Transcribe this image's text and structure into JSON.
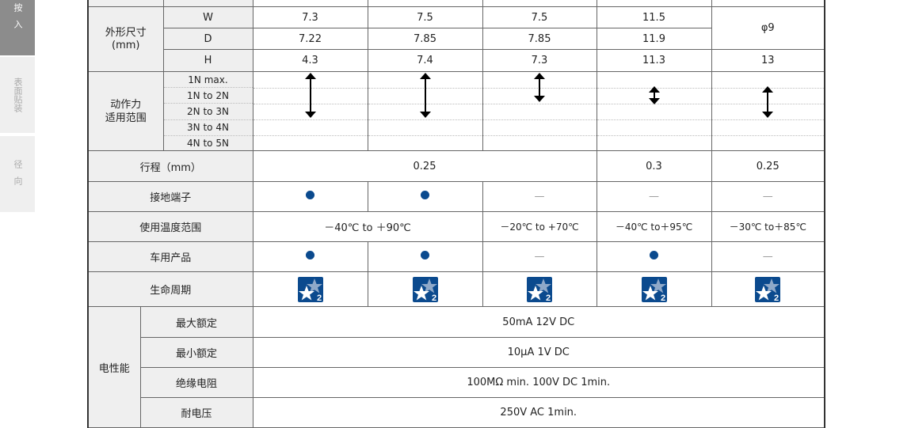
{
  "sidebar": {
    "tabs": [
      {
        "label": "按入",
        "active": true
      },
      {
        "label": "表面贴装"
      },
      {
        "label": "径向"
      }
    ]
  },
  "colors": {
    "dot": "#0b4a8e",
    "lifecycle_bg": "#0b4a8e",
    "label_bg": "#efefef"
  },
  "dimensions": {
    "label": "外形尺寸\n(mm)",
    "rows": [
      {
        "label": "W",
        "values": [
          "7.3",
          "7.5",
          "7.5",
          "11.5"
        ]
      },
      {
        "label": "D",
        "values": [
          "7.22",
          "7.85",
          "7.85",
          "11.9"
        ]
      },
      {
        "label": "H",
        "values": [
          "4.3",
          "7.4",
          "7.3",
          "11.3",
          "13"
        ]
      }
    ],
    "col5_wd": "φ9"
  },
  "force": {
    "label": "动作力\n适用范围",
    "levels": [
      "1N max.",
      "1N to 2N",
      "2N to 3N",
      "3N to 4N",
      "4N to 5N"
    ],
    "ranges": [
      {
        "from": 0,
        "to": 2
      },
      {
        "from": 0,
        "to": 2
      },
      {
        "from": 0,
        "to": 1
      },
      {
        "from": 1,
        "to": 1
      },
      {
        "from": 1,
        "to": 2
      }
    ]
  },
  "stroke": {
    "label": "行程（mm）",
    "values": [
      "0.25",
      "0.3",
      "0.25"
    ]
  },
  "ground": {
    "label": "接地端子",
    "values": [
      "dot",
      "dot",
      "—",
      "—",
      "—"
    ]
  },
  "temp": {
    "label": "使用温度范围",
    "values": [
      "－40℃ to ＋90℃",
      "－20℃ to +70℃",
      "－40℃ to＋95℃",
      "－30℃ to＋85℃"
    ]
  },
  "auto": {
    "label": "车用产品",
    "values": [
      "dot",
      "dot",
      "—",
      "dot",
      "—"
    ]
  },
  "lifecycle": {
    "label": "生命周期",
    "icon": "lifecycle-star-2-icon",
    "badge": "2"
  },
  "electrical": {
    "label": "电性能",
    "rows": [
      {
        "label": "最大额定",
        "value": "50mA 12V DC"
      },
      {
        "label": "最小额定",
        "value": "10μA 1V DC"
      },
      {
        "label": "绝缘电阻",
        "value": "100MΩ min. 100V DC 1min."
      },
      {
        "label": "耐电压",
        "value": "250V AC 1min."
      }
    ]
  }
}
